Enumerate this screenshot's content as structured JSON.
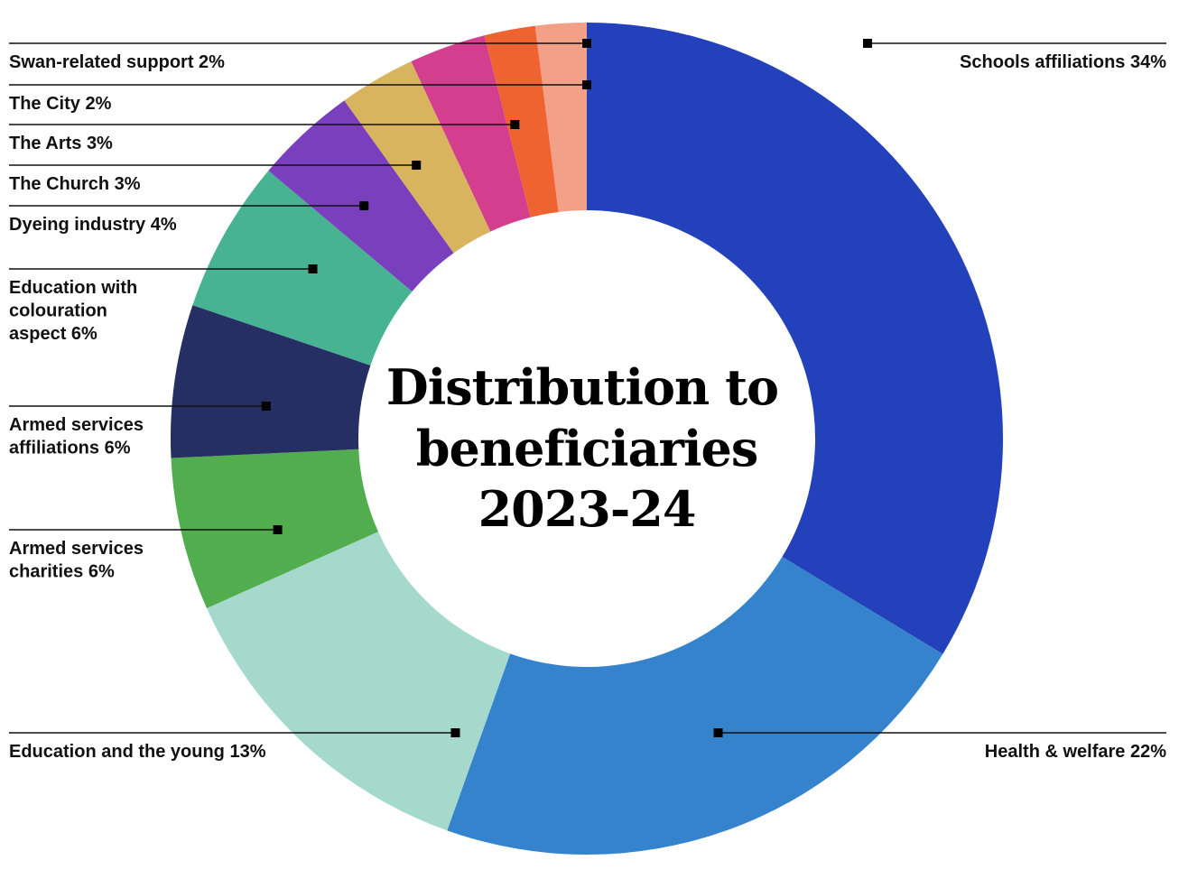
{
  "chart_data": {
    "type": "pie",
    "variant": "donut",
    "title": [
      "Distribution to",
      "beneficiaries",
      "2023-24"
    ],
    "unit": "%",
    "slices": [
      {
        "name": "Schools affiliations",
        "value": 34,
        "color": "#2341bb",
        "label_lines": [
          "Schools affiliations 34%"
        ],
        "side": "right"
      },
      {
        "name": "Health & welfare",
        "value": 22,
        "color": "#3583cd",
        "label_lines": [
          "Health & welfare 22%"
        ],
        "side": "right"
      },
      {
        "name": "Education and the young",
        "value": 13,
        "color": "#a5d9cb",
        "label_lines": [
          "Education and the young 13%"
        ],
        "side": "left"
      },
      {
        "name": "Armed services charities",
        "value": 6,
        "color": "#52ad4f",
        "label_lines": [
          "Armed services",
          "charities 6%"
        ],
        "side": "left"
      },
      {
        "name": "Armed services affiliations",
        "value": 6,
        "color": "#252f63",
        "label_lines": [
          "Armed services",
          "affiliations 6%"
        ],
        "side": "left"
      },
      {
        "name": "Education with colouration aspect",
        "value": 6,
        "color": "#48b393",
        "label_lines": [
          "Education with",
          "colouration",
          "aspect 6%"
        ],
        "side": "left"
      },
      {
        "name": "Dyeing industry",
        "value": 4,
        "color": "#7a3fbd",
        "label_lines": [
          "Dyeing industry 4%"
        ],
        "side": "left"
      },
      {
        "name": "The Church",
        "value": 3,
        "color": "#d8b45e",
        "label_lines": [
          "The Church 3%"
        ],
        "side": "left"
      },
      {
        "name": "The Arts",
        "value": 3,
        "color": "#d33e8e",
        "label_lines": [
          "The Arts 3%"
        ],
        "side": "left"
      },
      {
        "name": "The City",
        "value": 2,
        "color": "#ee6330",
        "label_lines": [
          "The City 2%"
        ],
        "side": "left"
      },
      {
        "name": "Swan-related support",
        "value": 2,
        "color": "#f3a088",
        "label_lines": [
          "Swan-related support 2%"
        ],
        "side": "left"
      }
    ]
  }
}
